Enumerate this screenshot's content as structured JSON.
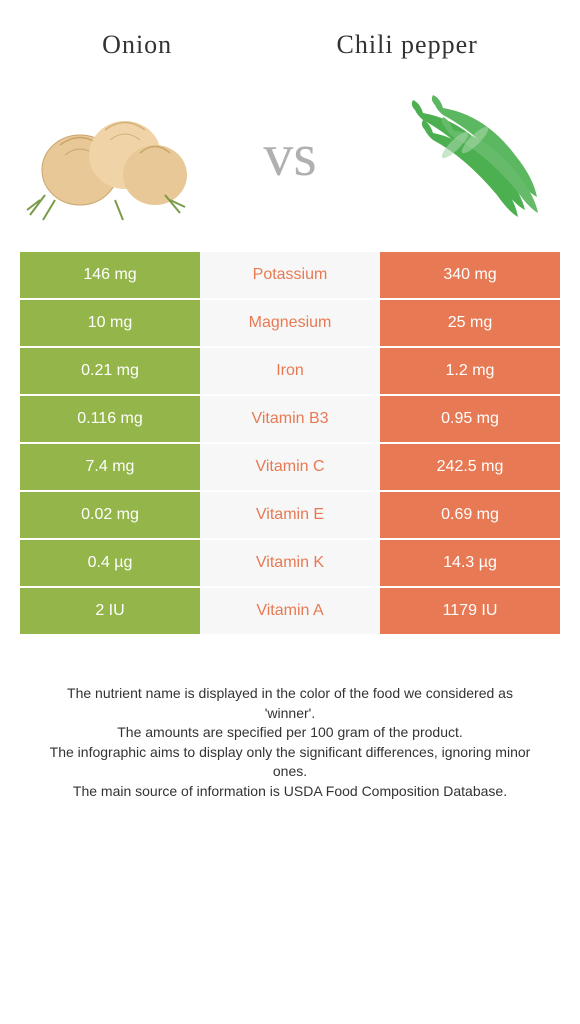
{
  "colors": {
    "left_bg": "#93b549",
    "right_bg": "#e77a54",
    "left_text": "#93b549",
    "right_text": "#e77a54",
    "mid_bg": "#f7f7f7"
  },
  "header": {
    "left_title": "Onion",
    "right_title": "Chili pepper",
    "vs": "vs"
  },
  "rows": [
    {
      "left": "146 mg",
      "mid": "Potassium",
      "right": "340 mg",
      "winner": "right"
    },
    {
      "left": "10 mg",
      "mid": "Magnesium",
      "right": "25 mg",
      "winner": "right"
    },
    {
      "left": "0.21 mg",
      "mid": "Iron",
      "right": "1.2 mg",
      "winner": "right"
    },
    {
      "left": "0.116 mg",
      "mid": "Vitamin B3",
      "right": "0.95 mg",
      "winner": "right"
    },
    {
      "left": "7.4 mg",
      "mid": "Vitamin C",
      "right": "242.5 mg",
      "winner": "right"
    },
    {
      "left": "0.02 mg",
      "mid": "Vitamin E",
      "right": "0.69 mg",
      "winner": "right"
    },
    {
      "left": "0.4 µg",
      "mid": "Vitamin K",
      "right": "14.3 µg",
      "winner": "right"
    },
    {
      "left": "2 IU",
      "mid": "Vitamin A",
      "right": "1179 IU",
      "winner": "right"
    }
  ],
  "footer": {
    "line1": "The nutrient name is displayed in the color of the food we considered as 'winner'.",
    "line2": "The amounts are specified per 100 gram of the product.",
    "line3": "The infographic aims to display only the significant differences, ignoring minor ones.",
    "line4": "The main source of information is USDA Food Composition Database."
  }
}
